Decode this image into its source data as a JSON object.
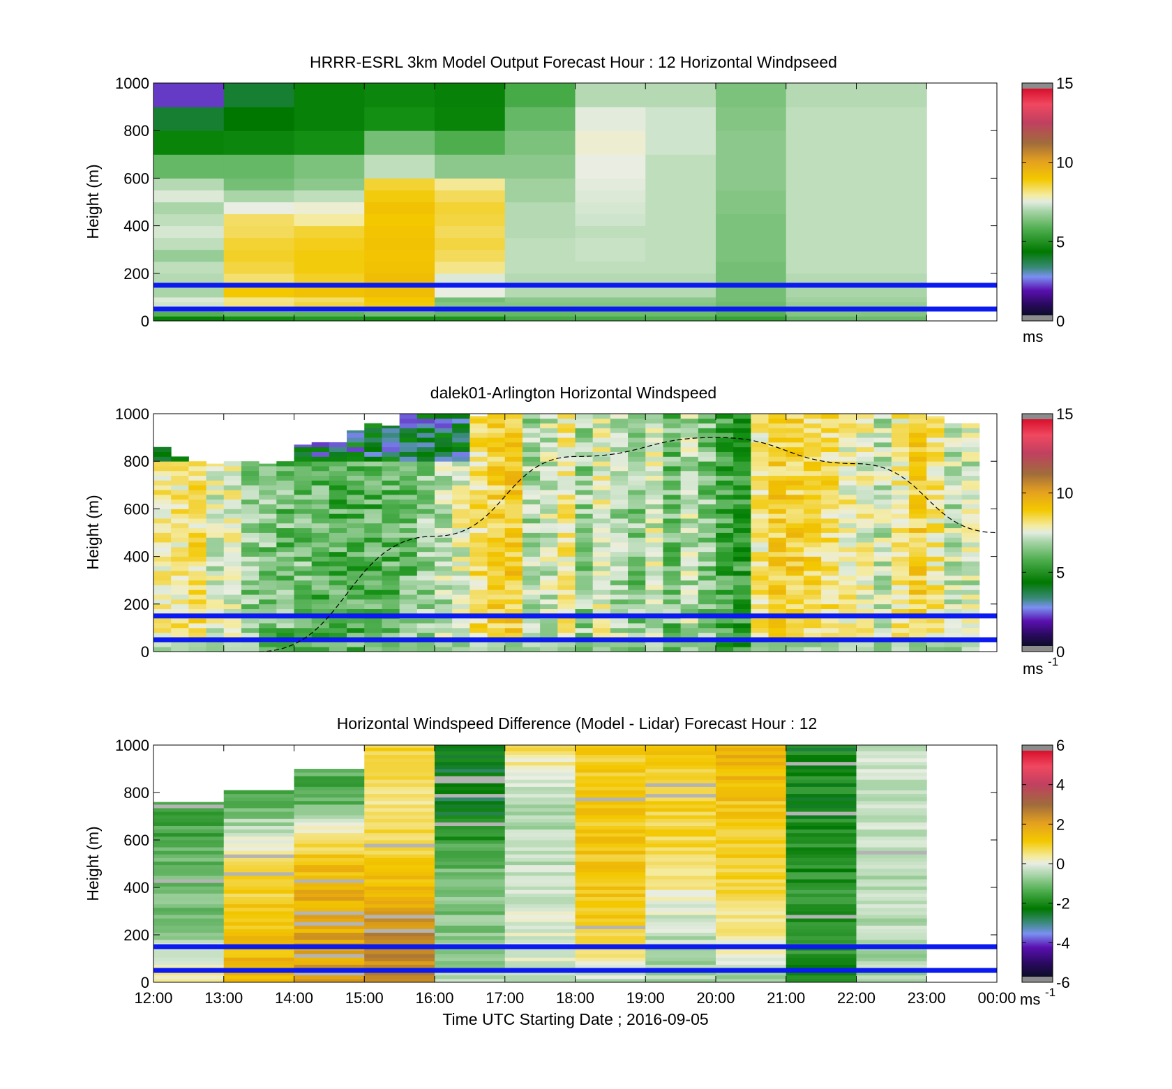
{
  "figure": {
    "xlabel": "Time UTC  Starting Date ; 2016-09-05"
  },
  "chart_data": [
    {
      "type": "heatmap",
      "title": "HRRR-ESRL 3km Model Output   Forecast Hour : 12 Horizontal Windpseed",
      "ylabel": "Height (m)",
      "ylim": [
        0,
        1000
      ],
      "yticks": [
        "0",
        "200",
        "400",
        "600",
        "800",
        "1000"
      ],
      "xlim": [
        "12:00",
        "00:00"
      ],
      "colorbar": {
        "ticks": [
          "0",
          "5",
          "10",
          "15"
        ],
        "range": [
          0,
          15
        ],
        "unit": "ms",
        "unit_sup": ""
      },
      "reference_lines_m": [
        50,
        150
      ],
      "hours": [
        "12:00",
        "13:00",
        "14:00",
        "15:00",
        "16:00",
        "17:00",
        "18:00",
        "19:00",
        "20:00",
        "21:00",
        "22:00"
      ],
      "level_bins_m": [
        0,
        20,
        40,
        60,
        80,
        100,
        150,
        200,
        250,
        300,
        350,
        400,
        450,
        500,
        550,
        600,
        700,
        800,
        900,
        1000
      ],
      "columns": [
        [
          4.5,
          5.8,
          6.9,
          7.2,
          7.4,
          6.8,
          6.9,
          7.0,
          6.6,
          7.0,
          7.3,
          7.0,
          6.8,
          7.4,
          6.9,
          6.0,
          4.6,
          3.8,
          2.0
        ],
        [
          5.0,
          6.0,
          7.6,
          8.3,
          8.2,
          9.3,
          8.4,
          8.8,
          9.0,
          8.9,
          8.6,
          8.5,
          7.6,
          6.8,
          6.2,
          6.0,
          4.7,
          4.2,
          3.8
        ],
        [
          5.2,
          5.9,
          7.7,
          8.8,
          8.5,
          9.5,
          9.0,
          9.2,
          9.2,
          9.1,
          8.9,
          8.0,
          7.7,
          7.0,
          6.5,
          6.3,
          5.0,
          4.5,
          4.5
        ],
        [
          5.0,
          6.2,
          8.1,
          9.2,
          9.3,
          9.6,
          9.6,
          9.5,
          9.4,
          9.5,
          9.4,
          9.3,
          9.5,
          9.2,
          8.9,
          7.0,
          6.2,
          5.0,
          4.7
        ],
        [
          5.1,
          6.0,
          6.5,
          6.4,
          6.2,
          7.6,
          7.4,
          8.2,
          8.6,
          8.8,
          8.6,
          8.8,
          8.9,
          8.6,
          8.1,
          6.5,
          5.7,
          4.6,
          4.5
        ],
        [
          5.6,
          6.0,
          6.2,
          6.4,
          6.5,
          6.9,
          6.9,
          7.0,
          7.0,
          7.0,
          6.9,
          6.9,
          6.9,
          6.7,
          6.7,
          6.5,
          6.3,
          6.0,
          5.6
        ],
        [
          5.6,
          6.1,
          6.2,
          6.4,
          6.5,
          6.9,
          6.9,
          7.0,
          7.1,
          7.1,
          7.0,
          7.2,
          7.3,
          7.4,
          7.5,
          7.6,
          7.7,
          7.5,
          6.9
        ],
        [
          5.7,
          6.1,
          6.2,
          6.4,
          6.5,
          6.9,
          6.9,
          7.0,
          7.0,
          7.0,
          7.0,
          7.0,
          7.0,
          7.0,
          7.0,
          7.0,
          7.2,
          7.2,
          6.9
        ],
        [
          5.4,
          5.8,
          6.0,
          6.1,
          6.2,
          6.2,
          6.2,
          6.2,
          6.3,
          6.3,
          6.3,
          6.3,
          6.4,
          6.4,
          6.5,
          6.5,
          6.5,
          6.4,
          6.3
        ],
        [
          6.0,
          6.4,
          6.5,
          6.6,
          6.7,
          6.8,
          6.9,
          7.0,
          7.0,
          7.0,
          7.0,
          7.0,
          7.0,
          7.0,
          7.0,
          7.0,
          7.0,
          7.0,
          6.9
        ],
        [
          6.1,
          6.4,
          6.5,
          6.6,
          6.7,
          6.8,
          6.9,
          7.0,
          7.0,
          7.0,
          7.0,
          7.0,
          7.0,
          7.0,
          7.0,
          7.0,
          7.0,
          7.0,
          6.9
        ]
      ]
    },
    {
      "type": "heatmap",
      "title": "dalek01-Arlington  Horizontal Windspeed",
      "ylabel": "Height (m)",
      "ylim": [
        0,
        1000
      ],
      "yticks": [
        "0",
        "200",
        "400",
        "600",
        "800",
        "1000"
      ],
      "xlim": [
        "12:00",
        "00:00"
      ],
      "colorbar": {
        "ticks": [
          "0",
          "5",
          "10",
          "15"
        ],
        "range": [
          0,
          15
        ],
        "unit": "ms",
        "unit_sup": "-1"
      },
      "reference_lines_m": [
        50,
        150
      ],
      "time_step_hours": 0.25,
      "top_of_data_m": [
        860,
        820,
        800,
        790,
        800,
        800,
        790,
        800,
        870,
        880,
        880,
        930,
        960,
        950,
        1000,
        1000,
        1000,
        1000,
        990,
        1000,
        1000,
        1000,
        1000,
        1000,
        1000,
        1000,
        1000,
        1000,
        1000,
        1000,
        1000,
        1000,
        1000,
        1000,
        1000,
        1000,
        1000,
        1000,
        1000,
        1000,
        1000,
        1000,
        1000,
        1000,
        990,
        960,
        960
      ],
      "column_mean_speed": [
        8.0,
        8.2,
        8.5,
        7.4,
        7.6,
        6.5,
        6.3,
        6.1,
        6.3,
        5.9,
        5.8,
        5.8,
        5.8,
        5.9,
        6.2,
        6.7,
        7.0,
        7.6,
        8.5,
        8.9,
        9.1,
        6.8,
        7.3,
        8.2,
        6.6,
        7.6,
        6.9,
        6.4,
        7.4,
        6.2,
        7.0,
        6.4,
        5.5,
        5.3,
        8.2,
        9.0,
        8.9,
        8.7,
        8.5,
        7.9,
        7.7,
        7.1,
        8.1,
        8.9,
        8.2,
        7.0,
        7.3
      ],
      "sun_elevation_curve": {
        "type": "line",
        "style": "dashed",
        "x": [
          "13:30",
          "16:00",
          "18:00",
          "20:00",
          "22:00",
          "00:00"
        ],
        "y": [
          0,
          485,
          820,
          900,
          790,
          500
        ]
      }
    },
    {
      "type": "heatmap",
      "title": "Horizontal Windspeed Difference (Model - Lidar) Forecast Hour : 12",
      "ylabel": "Height (m)",
      "ylim": [
        0,
        1000
      ],
      "yticks": [
        "0",
        "200",
        "400",
        "600",
        "800",
        "1000"
      ],
      "xlim": [
        "12:00",
        "00:00"
      ],
      "xticks": [
        "12:00",
        "13:00",
        "14:00",
        "15:00",
        "16:00",
        "17:00",
        "18:00",
        "19:00",
        "20:00",
        "21:00",
        "22:00",
        "23:00",
        "00:00"
      ],
      "colorbar": {
        "ticks": [
          "-6",
          "-4",
          "-2",
          "0",
          "2",
          "4",
          "6"
        ],
        "range": [
          -6,
          6
        ],
        "unit": "ms",
        "unit_sup": "-1"
      },
      "reference_lines_m": [
        50,
        150
      ],
      "hours": [
        "12:00",
        "13:00",
        "14:00",
        "15:00",
        "16:00",
        "17:00",
        "18:00",
        "19:00",
        "20:00",
        "21:00",
        "22:00"
      ],
      "top_of_data_m": [
        760,
        810,
        900,
        1000,
        1000,
        1000,
        1000,
        1000,
        1000,
        1000,
        1000
      ],
      "column_mean_difference": [
        -1.0,
        1.2,
        1.8,
        1.5,
        -2.0,
        -0.6,
        1.0,
        0.6,
        1.2,
        -2.2,
        -0.7
      ],
      "column_profile_difference": [
        [
          0.5,
          -1.3,
          -1.5,
          -2.2,
          -2.8
        ],
        [
          1.8,
          1.4,
          0.8,
          -1.7,
          -2.6
        ],
        [
          2.2,
          2.0,
          1.6,
          -1.6,
          -1.9
        ],
        [
          2.4,
          2.6,
          1.3,
          0.3,
          1.2
        ],
        [
          -0.8,
          -1.2,
          -1.5,
          -2.9,
          -2.6
        ],
        [
          -0.4,
          -0.3,
          -0.6,
          -0.9,
          0.9
        ],
        [
          -0.5,
          1.3,
          1.4,
          1.3,
          1.2
        ],
        [
          -0.9,
          -0.5,
          0.8,
          1.1,
          1.3
        ],
        [
          -0.8,
          0.5,
          1.2,
          1.4,
          2.0
        ],
        [
          -2.2,
          -2.2,
          -2.3,
          -2.4,
          -2.5
        ],
        [
          -0.9,
          -0.6,
          -0.7,
          -0.5,
          -0.5
        ]
      ]
    }
  ]
}
